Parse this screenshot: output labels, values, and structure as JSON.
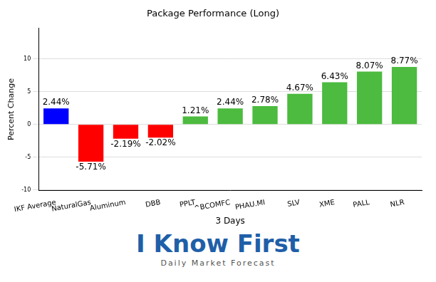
{
  "chart_data": {
    "type": "bar",
    "title": "Package Performance (Long)",
    "x_label": "3 Days",
    "y_label": "Percent Change",
    "categories": [
      "IKF Average",
      "NaturalGas",
      "Aluminum",
      "DBB",
      "PPLT",
      "^BCOMFC",
      "PHAU.MI",
      "SLV",
      "XME",
      "PALL",
      "NLR"
    ],
    "values": [
      2.44,
      -5.71,
      -2.19,
      -2.02,
      1.21,
      2.44,
      2.78,
      4.67,
      6.43,
      8.07,
      8.77
    ],
    "value_labels": [
      "2.44%",
      "-5.71%",
      "-2.19%",
      "-2.02%",
      "1.21%",
      "2.44%",
      "2.78%",
      "4.67%",
      "6.43%",
      "8.07%",
      "8.77%"
    ],
    "colors": [
      "#0000ff",
      "#ff0000",
      "#ff0000",
      "#ff0000",
      "#4cbb3f",
      "#4cbb3f",
      "#4cbb3f",
      "#4cbb3f",
      "#4cbb3f",
      "#4cbb3f",
      "#4cbb3f"
    ],
    "ylim": [
      -10.1,
      14.7
    ],
    "yticks": [
      -10,
      -5,
      0,
      5,
      10
    ],
    "grid": true,
    "data_labels": true,
    "annotations": [
      "I Know First",
      "Daily Market Forecast"
    ]
  }
}
